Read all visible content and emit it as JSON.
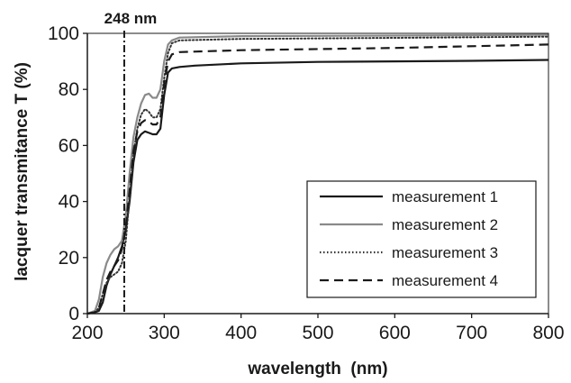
{
  "chart_data": {
    "type": "line",
    "title": "",
    "xlabel": "wavelength  (nm)",
    "ylabel": "lacquer transmitance T (%)",
    "xlim": [
      200,
      800
    ],
    "ylim": [
      0,
      100
    ],
    "xticks": [
      200,
      300,
      400,
      500,
      600,
      700,
      800
    ],
    "yticks": [
      0,
      20,
      40,
      60,
      80,
      100
    ],
    "grid": false,
    "legend_position": "bottom-right",
    "annotation": {
      "label": "248 nm",
      "x": 248
    },
    "series": [
      {
        "name": "measurement 1",
        "color": "#1a1a1a",
        "dash": "solid",
        "points": [
          [
            200,
            0
          ],
          [
            210,
            0.5
          ],
          [
            215,
            1
          ],
          [
            220,
            4
          ],
          [
            225,
            10
          ],
          [
            230,
            14
          ],
          [
            235,
            17
          ],
          [
            240,
            20
          ],
          [
            245,
            24
          ],
          [
            250,
            30
          ],
          [
            255,
            40
          ],
          [
            260,
            54
          ],
          [
            265,
            62
          ],
          [
            270,
            64
          ],
          [
            275,
            65
          ],
          [
            280,
            64.5
          ],
          [
            285,
            64
          ],
          [
            290,
            64
          ],
          [
            295,
            66
          ],
          [
            300,
            78
          ],
          [
            305,
            86
          ],
          [
            310,
            87.5
          ],
          [
            320,
            88
          ],
          [
            340,
            88.5
          ],
          [
            400,
            89.3
          ],
          [
            500,
            89.8
          ],
          [
            600,
            90
          ],
          [
            700,
            90.2
          ],
          [
            800,
            90.5
          ]
        ]
      },
      {
        "name": "measurement 2",
        "color": "#8a8a8a",
        "dash": "solid",
        "points": [
          [
            200,
            0
          ],
          [
            210,
            1
          ],
          [
            215,
            5
          ],
          [
            220,
            13
          ],
          [
            225,
            18
          ],
          [
            230,
            21
          ],
          [
            235,
            23
          ],
          [
            240,
            24
          ],
          [
            245,
            26
          ],
          [
            250,
            35
          ],
          [
            255,
            50
          ],
          [
            260,
            63
          ],
          [
            265,
            70
          ],
          [
            270,
            75
          ],
          [
            275,
            78
          ],
          [
            280,
            78.5
          ],
          [
            285,
            77
          ],
          [
            290,
            77
          ],
          [
            295,
            80
          ],
          [
            300,
            90
          ],
          [
            305,
            96
          ],
          [
            310,
            97.5
          ],
          [
            320,
            98.5
          ],
          [
            400,
            99
          ],
          [
            600,
            99.2
          ],
          [
            800,
            99.5
          ]
        ]
      },
      {
        "name": "measurement 3",
        "color": "#333333",
        "dash": "dotted",
        "points": [
          [
            200,
            0
          ],
          [
            210,
            0.5
          ],
          [
            215,
            2
          ],
          [
            220,
            7
          ],
          [
            225,
            11
          ],
          [
            230,
            13
          ],
          [
            235,
            14
          ],
          [
            240,
            15
          ],
          [
            245,
            18
          ],
          [
            250,
            26
          ],
          [
            255,
            42
          ],
          [
            260,
            57
          ],
          [
            265,
            66
          ],
          [
            270,
            71
          ],
          [
            275,
            73
          ],
          [
            280,
            72
          ],
          [
            285,
            70
          ],
          [
            290,
            70
          ],
          [
            295,
            73
          ],
          [
            300,
            84
          ],
          [
            305,
            93
          ],
          [
            310,
            96.5
          ],
          [
            320,
            97.5
          ],
          [
            400,
            98
          ],
          [
            600,
            98.4
          ],
          [
            800,
            98.8
          ]
        ]
      },
      {
        "name": "measurement 4",
        "color": "#1a1a1a",
        "dash": "dashed",
        "points": [
          [
            200,
            0
          ],
          [
            210,
            0.5
          ],
          [
            215,
            2
          ],
          [
            220,
            7
          ],
          [
            225,
            12
          ],
          [
            230,
            15
          ],
          [
            235,
            17
          ],
          [
            240,
            19
          ],
          [
            245,
            23
          ],
          [
            250,
            31
          ],
          [
            255,
            44
          ],
          [
            260,
            58
          ],
          [
            265,
            65
          ],
          [
            270,
            68
          ],
          [
            275,
            69
          ],
          [
            280,
            68.5
          ],
          [
            285,
            67.5
          ],
          [
            290,
            67.5
          ],
          [
            295,
            70
          ],
          [
            300,
            82
          ],
          [
            305,
            90
          ],
          [
            310,
            92.5
          ],
          [
            320,
            93.3
          ],
          [
            400,
            94
          ],
          [
            600,
            94.8
          ],
          [
            800,
            96
          ]
        ]
      }
    ]
  }
}
